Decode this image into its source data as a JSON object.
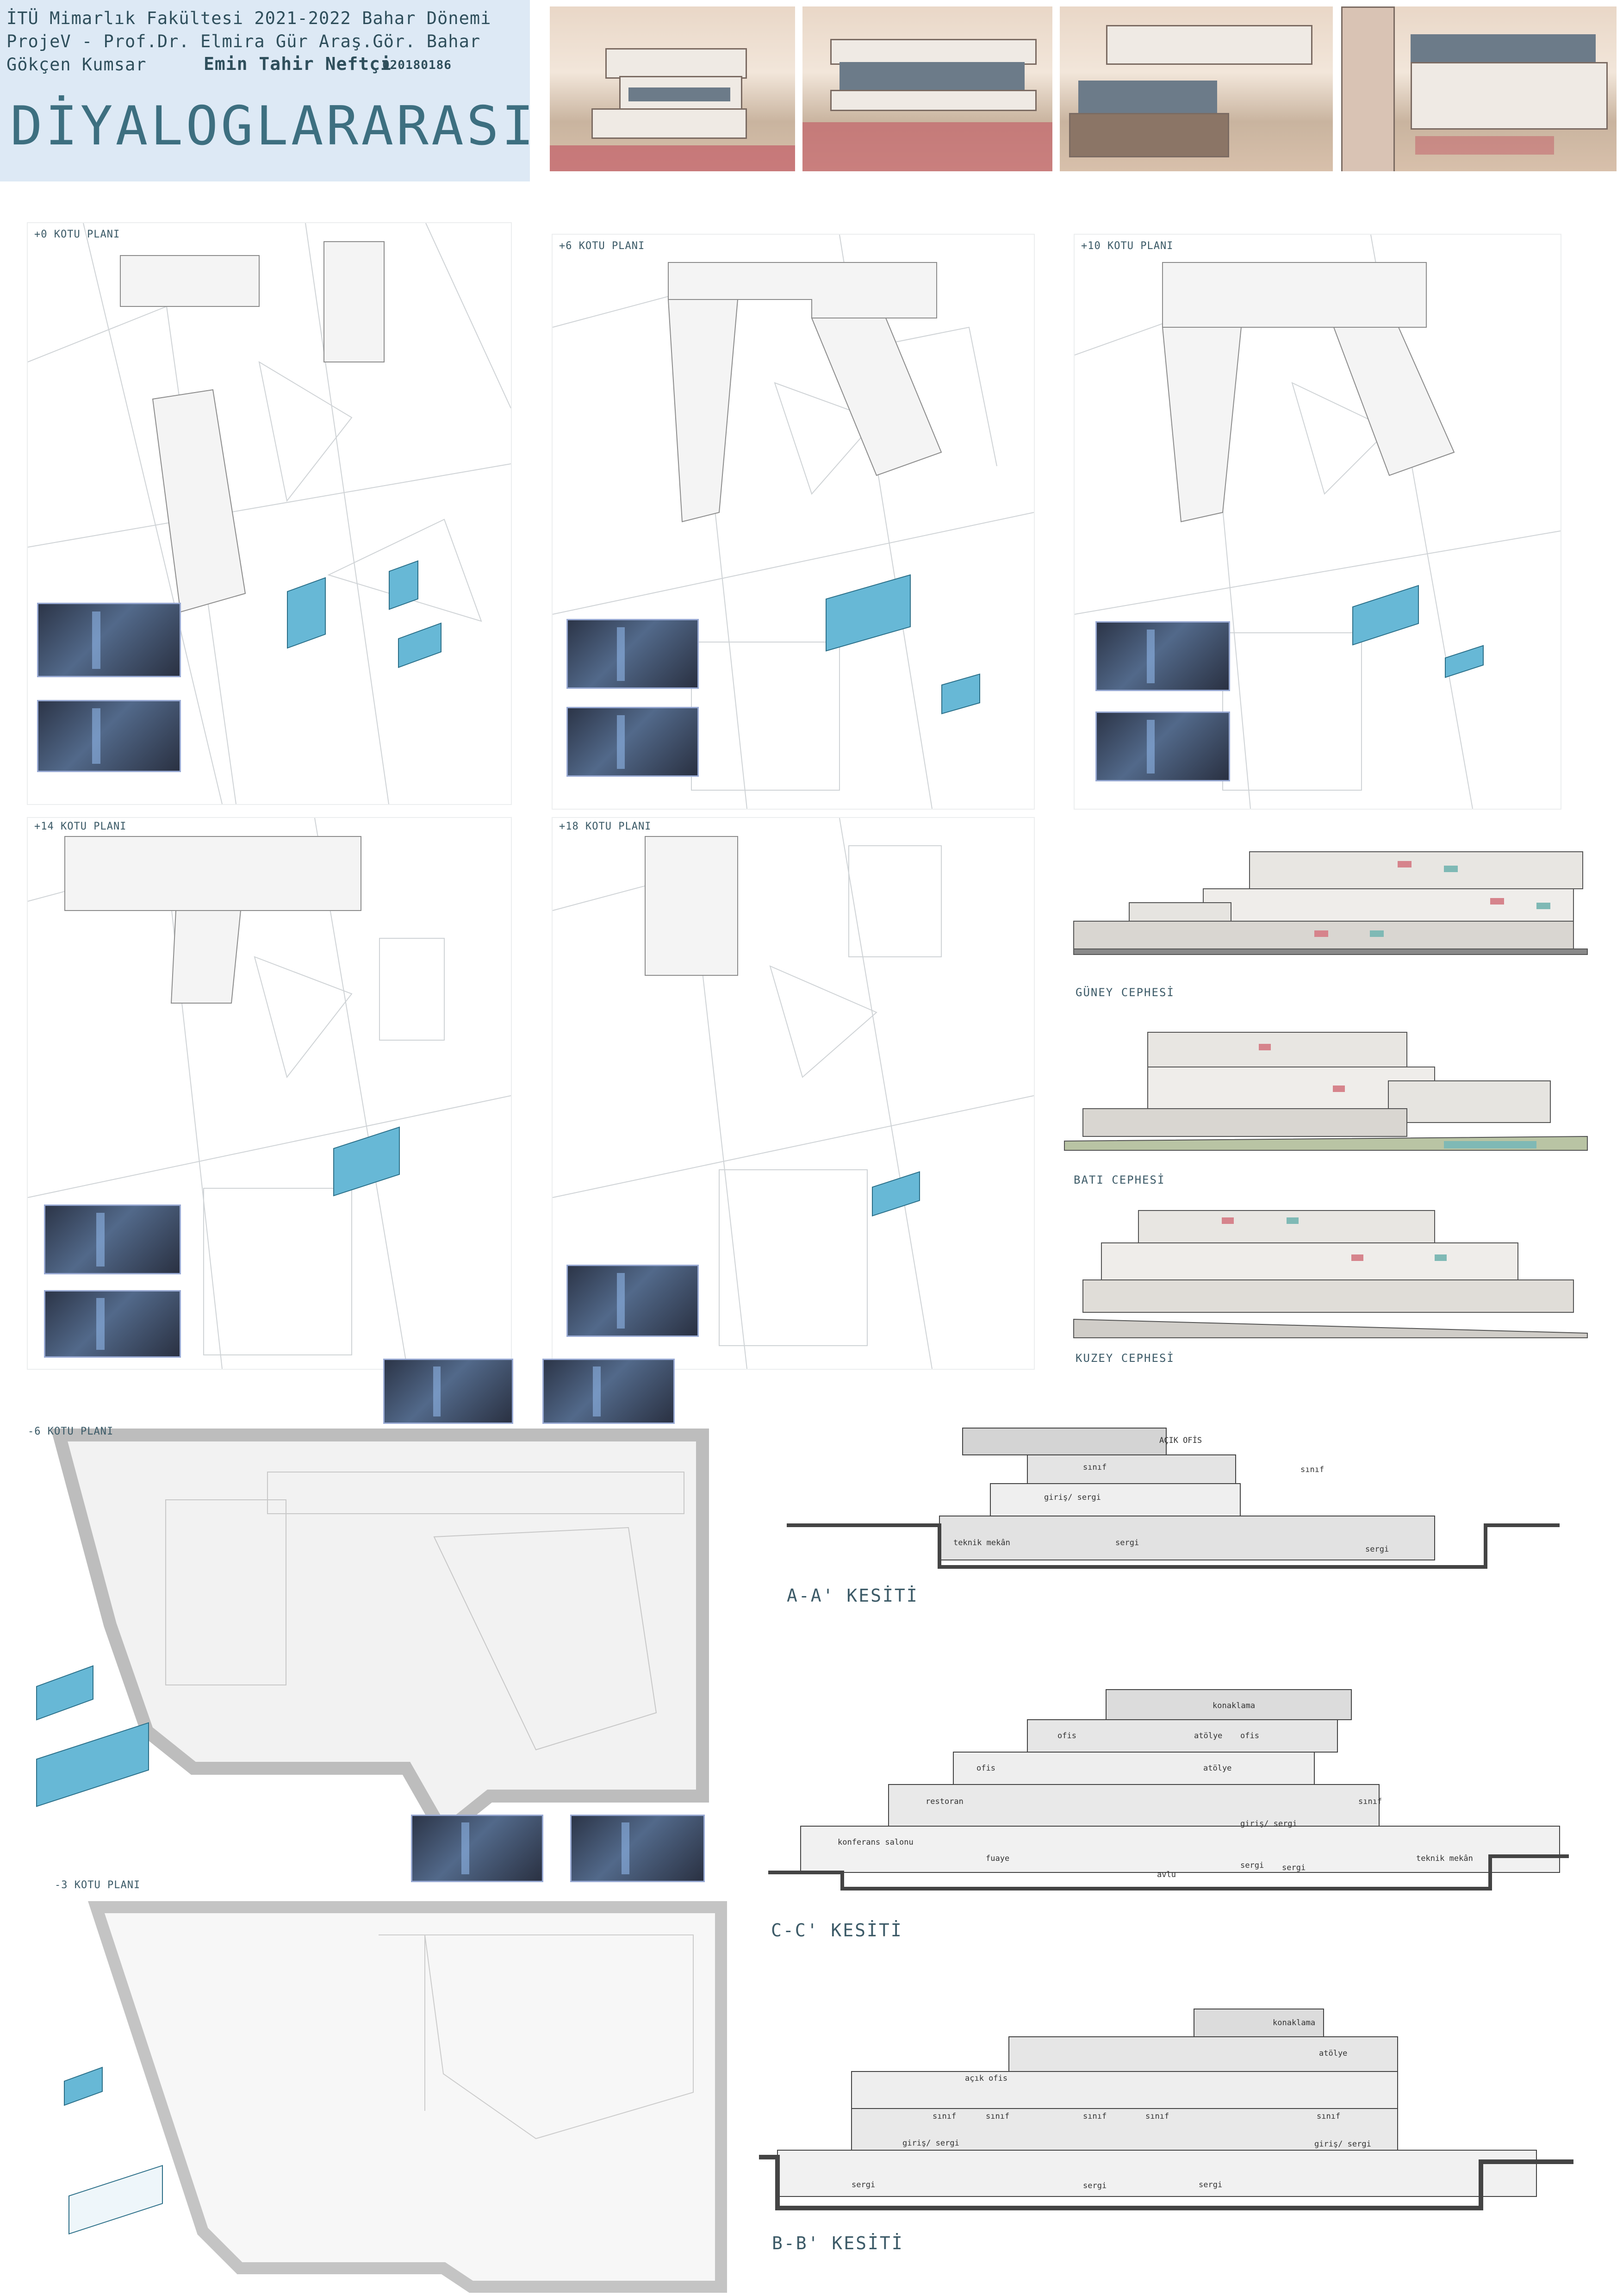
{
  "header": {
    "line1": "İTÜ Mimarlık Fakültesi 2021-2022 Bahar Dönemi",
    "line2": "ProjeV - Prof.Dr. Elmira Gür Araş.Gör. Bahar",
    "line3_name": "Gökçen Kumsar",
    "student_name": "Emin Tahir Neftçi",
    "student_no": "020180186",
    "title": "DİYALOGLARARASI"
  },
  "plans": {
    "p0": "+0 KOTU PLANI",
    "p6": "+6 KOTU PLANI",
    "p10": "+10 KOTU PLANI",
    "p14": "+14 KOTU PLANI",
    "p18": "+18 KOTU PLANI",
    "m6": "-6 KOTU PLANI",
    "m3": "-3 KOTU PLANI"
  },
  "facades": {
    "guney": "GÜNEY CEPHESİ",
    "bati": "BATI CEPHESİ",
    "kuzey": "KUZEY CEPHESİ"
  },
  "sections": {
    "aa": {
      "label": "A-A' KESİTİ",
      "rooms": [
        "AÇIK OFİS",
        "sınıf",
        "sınıf",
        "giriş/ sergi",
        "teknik mekân",
        "sergi",
        "sergi"
      ]
    },
    "cc": {
      "label": "C-C' KESİTİ",
      "rooms": [
        "konaklama",
        "ofis",
        "atölye",
        "ofis",
        "atölye",
        "ofis",
        "restoran",
        "sınıf",
        "giriş/ sergi",
        "konferans salonu",
        "fuaye",
        "sergi",
        "sergi",
        "teknik mekân",
        "avlu"
      ]
    },
    "bb": {
      "label": "B-B' KESİTİ",
      "rooms": [
        "konaklama",
        "atölye",
        "açık ofis",
        "sınıf",
        "sınıf",
        "sınıf",
        "sınıf",
        "sınıf",
        "giriş/ sergi",
        "giriş/ sergi",
        "sergi",
        "sergi",
        "sergi"
      ]
    }
  },
  "colors": {
    "header_bg": "#dde9f5",
    "title": "#3d6f80",
    "axo_blue": "#67b8d6",
    "facade_accent_red": "#d6848c",
    "facade_accent_teal": "#7fb9b5"
  }
}
